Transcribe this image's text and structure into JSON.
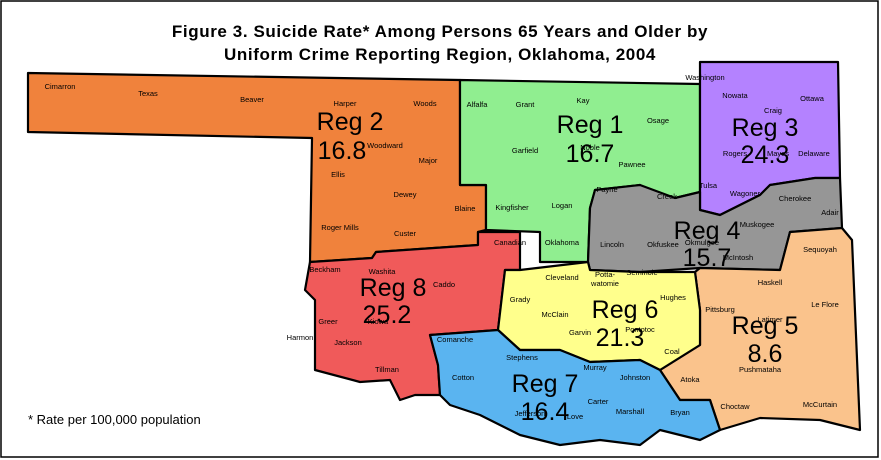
{
  "title": [
    "Figure 3. Suicide Rate* Among Persons 65 Years and Older by",
    "Uniform Crime Reporting Region, Oklahoma, 2004"
  ],
  "footnote": "* Rate per 100,000 population",
  "regions": [
    {
      "label": "Reg 1",
      "rate": 16.7,
      "color": "#90ee90",
      "counties": [
        "Alfalfa",
        "Grant",
        "Kay",
        "Osage",
        "Noble",
        "Garfield",
        "Pawnee",
        "Kingfisher",
        "Logan",
        "Payne",
        "Oklahoma"
      ]
    },
    {
      "label": "Reg 2",
      "rate": 16.8,
      "color": "#f0823c",
      "counties": [
        "Cimarron",
        "Texas",
        "Beaver",
        "Harper",
        "Woods",
        "Woodward",
        "Ellis",
        "Major",
        "Dewey",
        "Roger Mills",
        "Custer",
        "Blaine"
      ]
    },
    {
      "label": "Reg 3",
      "rate": 24.3,
      "color": "#b482ff",
      "counties": [
        "Washington",
        "Nowata",
        "Craig",
        "Ottawa",
        "Rogers",
        "Mayes",
        "Delaware",
        "Tulsa",
        "Wagoner"
      ]
    },
    {
      "label": "Reg 4",
      "rate": 15.7,
      "color": "#969696",
      "counties": [
        "Creek",
        "Cherokee",
        "Adair",
        "Lincoln",
        "Okfuskee",
        "Okmulgee",
        "Muskogee",
        "McIntosh"
      ]
    },
    {
      "label": "Reg 5",
      "rate": 8.6,
      "color": "#fac38c",
      "counties": [
        "Sequoyah",
        "Haskell",
        "Le Flore",
        "Pittsburg",
        "Latimer",
        "Pushmataha",
        "Atoka",
        "Choctaw",
        "McCurtain"
      ]
    },
    {
      "label": "Reg 6",
      "rate": 21.3,
      "color": "#ffff8c",
      "counties": [
        "Cleveland",
        [
          "Potta-",
          "watomie"
        ],
        "Seminole",
        "Grady",
        "Hughes",
        "McClain",
        "Garvin",
        "Pontotoc",
        "Coal"
      ]
    },
    {
      "label": "Reg 7",
      "rate": 16.4,
      "color": "#5ab4f0",
      "counties": [
        "Comanche",
        "Cotton",
        "Stephens",
        "Murray",
        "Johnston",
        "Carter",
        "Jefferson",
        "Love",
        "Marshall",
        "Bryan"
      ]
    },
    {
      "label": "Reg 8",
      "rate": 25.2,
      "color": "#f05a5a",
      "counties": [
        "Beckham",
        "Washita",
        "Caddo",
        "Greer",
        "Kiowa",
        "Harmon",
        "Jackson",
        "Tillman",
        "Canadian"
      ]
    }
  ]
}
